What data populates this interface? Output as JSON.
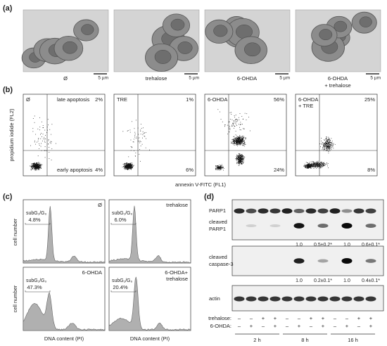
{
  "panels": [
    "(a)",
    "(b)",
    "(c)",
    "(d)"
  ],
  "micrographs": [
    {
      "label": [
        "Ø"
      ],
      "scale": "5 µm"
    },
    {
      "label": [
        "trehalose"
      ],
      "scale": "5 µm"
    },
    {
      "label": [
        "6-OHDA"
      ],
      "scale": "5 µm"
    },
    {
      "label": [
        "6-OHDA",
        "+ trehalose"
      ],
      "scale": "5 µm"
    }
  ],
  "flow": {
    "y_axis": "propidium iodide (FL2)",
    "x_axis": "annexin V-FITC (FL1)",
    "plots": [
      {
        "label": [
          "Ø"
        ],
        "late_label": "late apoptosis",
        "late": "2%",
        "early_label": "early apoptosis",
        "early": "4%"
      },
      {
        "label": [
          "TRE"
        ],
        "late": "1%",
        "early": "6%"
      },
      {
        "label": [
          "6-OHDA"
        ],
        "late": "56%",
        "early": "24%"
      },
      {
        "label": [
          "6-OHDA",
          "+ TRE"
        ],
        "late": "25%",
        "early": "8%"
      }
    ]
  },
  "cell_cycle": {
    "y_axis": "cell number",
    "x_axis": "DNA content (PI)",
    "subg_label": "subG₁/G₀",
    "plots": [
      {
        "label": [
          "Ø"
        ],
        "subg": "4.8%"
      },
      {
        "label": [
          "trehalose"
        ],
        "subg": "6.0%"
      },
      {
        "label": [
          "6-OHDA"
        ],
        "subg": "47.3%"
      },
      {
        "label": [
          "6-OHDA+",
          "trehalose"
        ],
        "subg": "20.4%"
      }
    ]
  },
  "western": {
    "blots": [
      {
        "labels": [
          [
            "PARP1"
          ],
          [
            "cleaved",
            "PARP1"
          ]
        ],
        "quant": [
          "1.0",
          "0.5±0.2*",
          "1.0",
          "0.6±0.1*"
        ]
      },
      {
        "labels": [
          [
            "cleaved",
            "caspase-3"
          ]
        ],
        "quant": [
          "1.0",
          "0.2±0.1*",
          "1.0",
          "0.4±0.1*"
        ]
      },
      {
        "labels": [
          [
            "actin"
          ]
        ]
      }
    ],
    "treatments": [
      {
        "name": "trehalose:",
        "signs": [
          "–",
          "–",
          "+",
          "+",
          "–",
          "–",
          "+",
          "+",
          "–",
          "–",
          "+",
          "+"
        ]
      },
      {
        "name": "6-OHDA:",
        "signs": [
          "–",
          "+",
          "–",
          "+",
          "–",
          "+",
          "–",
          "+",
          "–",
          "+",
          "–",
          "+"
        ]
      }
    ],
    "times": [
      "2 h",
      "8 h",
      "16 h"
    ]
  }
}
